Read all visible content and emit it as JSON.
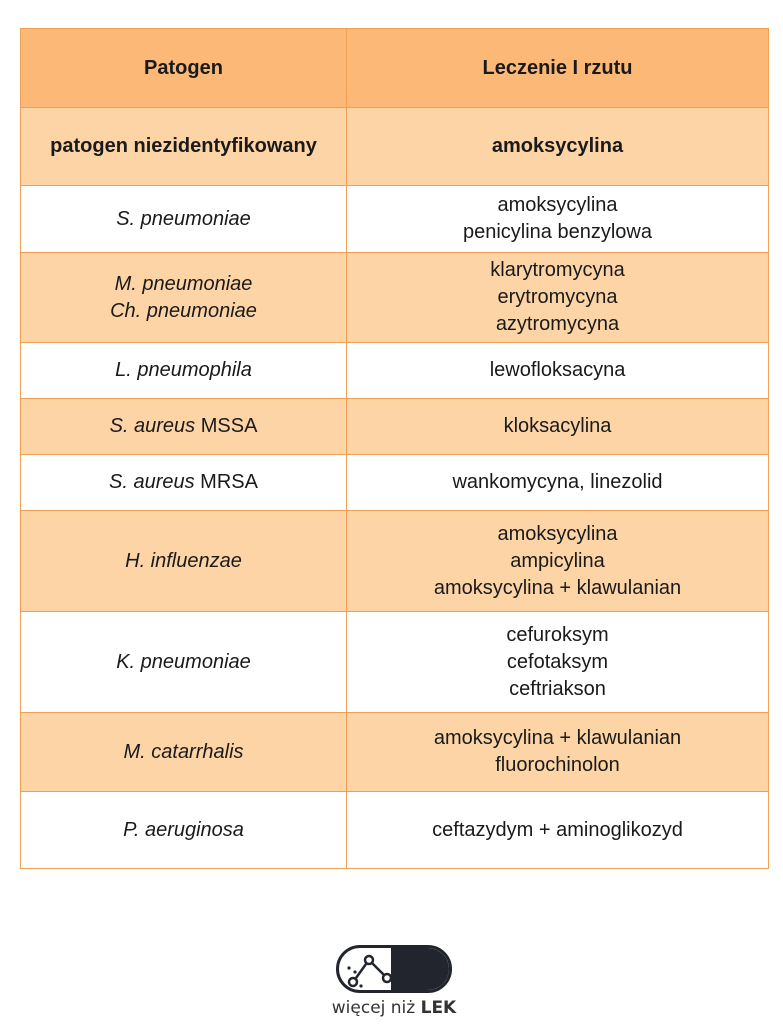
{
  "table": {
    "headers": [
      "Patogen",
      "Leczenie I rzutu"
    ],
    "rows": [
      {
        "pathogen": "patogen niezidentyfikowany",
        "treatment": [
          "amoksycylina"
        ]
      },
      {
        "pathogen": "S. pneumoniae",
        "treatment": [
          "amoksycylina",
          "penicylina benzylowa"
        ]
      },
      {
        "pathogen": [
          "M. pneumoniae",
          "Ch. pneumoniae"
        ],
        "treatment": [
          "klarytromycyna",
          "erytromycyna",
          "azytromycyna"
        ]
      },
      {
        "pathogen": "L. pneumophila",
        "treatment": [
          "lewofloksacyna"
        ]
      },
      {
        "pathogen_italic": "S. aureus",
        "pathogen_suffix": " MSSA",
        "treatment": [
          "kloksacylina"
        ]
      },
      {
        "pathogen_italic": "S. aureus",
        "pathogen_suffix": " MRSA",
        "treatment": [
          "wankomycyna, linezolid"
        ]
      },
      {
        "pathogen": "H. influenzae",
        "treatment": [
          "amoksycylina",
          "ampicylina",
          "amoksycylina + klawulanian"
        ]
      },
      {
        "pathogen": "K. pneumoniae",
        "treatment": [
          "cefuroksym",
          "cefotaksym",
          "ceftriakson"
        ]
      },
      {
        "pathogen": "M. catarrhalis",
        "treatment": [
          "amoksycylina + klawulanian",
          "fluorochinolon"
        ]
      },
      {
        "pathogen": "P. aeruginosa",
        "treatment": [
          "ceftazydym + aminoglikozyd"
        ]
      }
    ]
  },
  "logo": {
    "prefix": "więcej niż ",
    "brand": "LEK"
  },
  "colors": {
    "header_bg": "#fbb877",
    "shade_bg": "#fdd4a6",
    "border": "#f0a055",
    "logo_dark": "#22252d"
  }
}
